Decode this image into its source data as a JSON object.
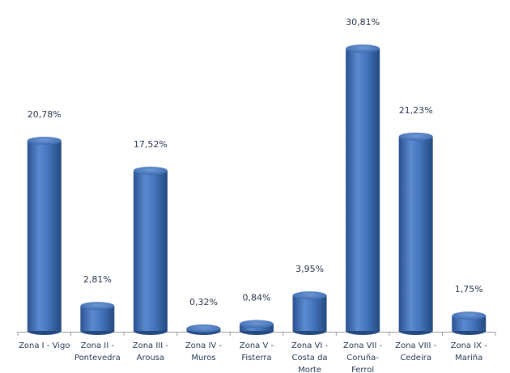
{
  "chart_data": {
    "type": "bar",
    "categories": [
      "Zona I - Vigo",
      "Zona II - Pontevedra",
      "Zona III - Arousa",
      "Zona IV - Muros",
      "Zona V - Fisterra",
      "Zona VI - Costa da Morte",
      "Zona VII - Coruña-Ferrol",
      "Zona VIII - Cedeira",
      "Zona IX - Mariña"
    ],
    "category_labels": [
      "Zona I - Vigo",
      "Zona II -\nPontevedra",
      "Zona III -\nArousa",
      "Zona IV -\nMuros",
      "Zona V -\nFisterra",
      "Zona VI -\nCosta da\nMorte",
      "Zona VII -\nCoruña-\nFerrol",
      "Zona VIII -\nCedeira",
      "Zona IX -\nMariña"
    ],
    "values": [
      20.78,
      2.81,
      17.52,
      0.32,
      0.84,
      3.95,
      30.81,
      21.23,
      1.75
    ],
    "data_labels": [
      "20,78%",
      "2,81%",
      "17,52%",
      "0,32%",
      "0,84%",
      "3,95%",
      "30,81%",
      "21,23%",
      "1,75%"
    ],
    "bar_style": "3d-cylinder",
    "bar_color": "#3f6fb5",
    "grid": false,
    "legend": "none"
  }
}
